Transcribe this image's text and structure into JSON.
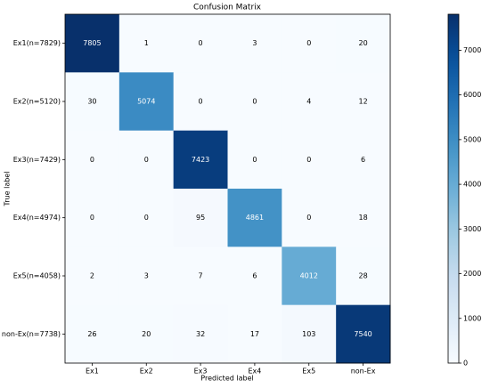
{
  "chart_data": {
    "type": "heatmap",
    "title": "Confusion Matrix",
    "x_label": "Predicted label",
    "y_label": "True label",
    "x_categories": [
      "Ex1",
      "Ex2",
      "Ex3",
      "Ex4",
      "Ex5",
      "non-Ex"
    ],
    "y_categories": [
      "Ex1(n=7829)",
      "Ex2(n=5120)",
      "Ex3(n=7429)",
      "Ex4(n=4974)",
      "Ex5(n=4058)",
      "non-Ex(n=7738)"
    ],
    "values": [
      [
        7805,
        1,
        0,
        3,
        0,
        20
      ],
      [
        30,
        5074,
        0,
        0,
        4,
        12
      ],
      [
        0,
        0,
        7423,
        0,
        0,
        6
      ],
      [
        0,
        0,
        95,
        4861,
        0,
        18
      ],
      [
        2,
        3,
        7,
        6,
        4012,
        28
      ],
      [
        26,
        20,
        32,
        17,
        103,
        7540
      ]
    ],
    "colormap": "Blues",
    "clim": [
      0,
      7805
    ],
    "colorbar_ticks": [
      0,
      1000,
      2000,
      3000,
      4000,
      5000,
      6000,
      7000
    ]
  }
}
